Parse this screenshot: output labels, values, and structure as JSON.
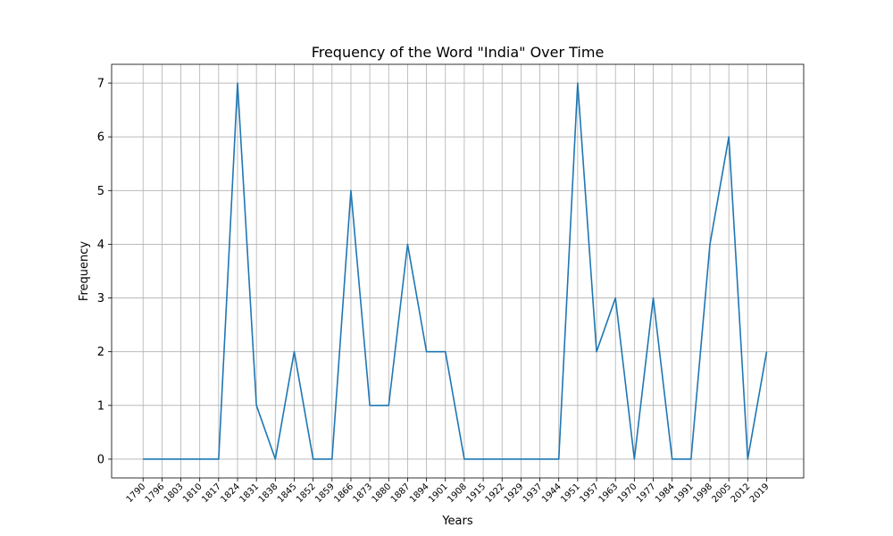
{
  "chart_data": {
    "type": "line",
    "title": "Frequency of the Word \"India\" Over Time",
    "xlabel": "Years",
    "ylabel": "Frequency",
    "ylim": [
      -0.35,
      7.35
    ],
    "yticks": [
      0,
      1,
      2,
      3,
      4,
      5,
      6,
      7
    ],
    "grid": true,
    "x": [
      "1790",
      "1796",
      "1803",
      "1810",
      "1817",
      "1824",
      "1831",
      "1838",
      "1845",
      "1852",
      "1859",
      "1866",
      "1873",
      "1880",
      "1887",
      "1894",
      "1901",
      "1908",
      "1915",
      "1922",
      "1929",
      "1937",
      "1944",
      "1951",
      "1957",
      "1963",
      "1970",
      "1977",
      "1984",
      "1991",
      "1998",
      "2005",
      "2012",
      "2019"
    ],
    "series": [
      {
        "color": "#1f77b4",
        "values": [
          0,
          0,
          0,
          0,
          0,
          7,
          1,
          0,
          2,
          0,
          0,
          5,
          1,
          1,
          4,
          2,
          2,
          0,
          0,
          0,
          0,
          0,
          0,
          7,
          2,
          3,
          0,
          3,
          0,
          0,
          4,
          6,
          0,
          2
        ]
      }
    ]
  }
}
